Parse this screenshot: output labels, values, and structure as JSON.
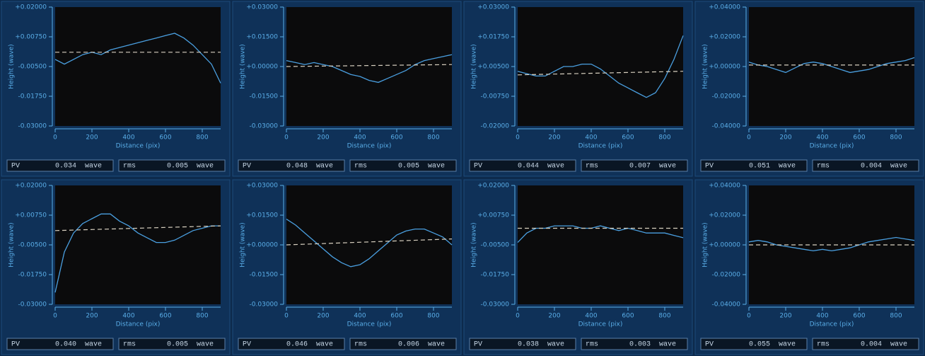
{
  "chart_data": [
    {
      "type": "line",
      "ylabel": "Height (wave)",
      "xlabel": "Distance (pix)",
      "xlim": [
        0,
        900
      ],
      "ylim": [
        -0.03,
        0.02
      ],
      "xticks": [
        0,
        200,
        400,
        600,
        800
      ],
      "yticks": [
        {
          "value": 0.02,
          "label": "+0.02000"
        },
        {
          "value": 0.0075,
          "label": "+0.00750"
        },
        {
          "value": -0.005,
          "label": "-0.00500"
        },
        {
          "value": -0.0175,
          "label": "-0.01750"
        },
        {
          "value": -0.03,
          "label": "-0.03000"
        }
      ],
      "x": [
        0,
        50,
        100,
        150,
        200,
        250,
        300,
        350,
        400,
        450,
        500,
        550,
        600,
        650,
        700,
        750,
        800,
        850,
        900
      ],
      "series": [
        {
          "color": "#4a9fe0",
          "values": [
            -0.002,
            -0.004,
            -0.002,
            0.0,
            0.001,
            0.0,
            0.002,
            0.003,
            0.004,
            0.005,
            0.006,
            0.007,
            0.008,
            0.009,
            0.007,
            0.004,
            0.0,
            -0.004,
            -0.012
          ]
        },
        {
          "color": "#d8d0c0",
          "dash": true,
          "x": [
            0,
            900
          ],
          "values": [
            0.001,
            0.001
          ]
        }
      ],
      "stats": [
        {
          "name": "PV",
          "value": 0.034,
          "unit": "wave"
        },
        {
          "name": "rms",
          "value": 0.005,
          "unit": "wave"
        }
      ]
    },
    {
      "type": "line",
      "ylabel": "Height (wave)",
      "xlabel": "Distance (pix)",
      "xlim": [
        0,
        900
      ],
      "ylim": [
        -0.03,
        0.03
      ],
      "xticks": [
        0,
        200,
        400,
        600,
        800
      ],
      "yticks": [
        {
          "value": 0.03,
          "label": "+0.03000"
        },
        {
          "value": 0.015,
          "label": "+0.01500"
        },
        {
          "value": 0,
          "label": "+0.00000"
        },
        {
          "value": -0.015,
          "label": "-0.01500"
        },
        {
          "value": -0.03,
          "label": "-0.03000"
        }
      ],
      "x": [
        0,
        50,
        100,
        150,
        200,
        250,
        300,
        350,
        400,
        450,
        500,
        550,
        600,
        650,
        700,
        750,
        800,
        850,
        900
      ],
      "series": [
        {
          "color": "#4a9fe0",
          "values": [
            0.003,
            0.002,
            0.001,
            0.002,
            0.001,
            0.0,
            -0.002,
            -0.004,
            -0.005,
            -0.007,
            -0.008,
            -0.006,
            -0.004,
            -0.002,
            0.001,
            0.003,
            0.004,
            0.005,
            0.006
          ]
        },
        {
          "color": "#d8d0c0",
          "dash": true,
          "x": [
            0,
            900
          ],
          "values": [
            0.0,
            0.001
          ]
        }
      ],
      "stats": [
        {
          "name": "PV",
          "value": 0.048,
          "unit": "wave"
        },
        {
          "name": "rms",
          "value": 0.005,
          "unit": "wave"
        }
      ]
    },
    {
      "type": "line",
      "ylabel": "Height (wave)",
      "xlabel": "Distance (pix)",
      "xlim": [
        0,
        900
      ],
      "ylim": [
        -0.02,
        0.03
      ],
      "xticks": [
        0,
        200,
        400,
        600,
        800
      ],
      "yticks": [
        {
          "value": 0.03,
          "label": "+0.03000"
        },
        {
          "value": 0.0175,
          "label": "+0.01750"
        },
        {
          "value": 0.005,
          "label": "+0.00500"
        },
        {
          "value": -0.0075,
          "label": "-0.00750"
        },
        {
          "value": -0.02,
          "label": "-0.02000"
        }
      ],
      "x": [
        0,
        50,
        100,
        150,
        200,
        250,
        300,
        350,
        400,
        450,
        500,
        550,
        600,
        650,
        700,
        750,
        800,
        850,
        900
      ],
      "series": [
        {
          "color": "#4a9fe0",
          "values": [
            0.003,
            0.002,
            0.001,
            0.001,
            0.003,
            0.005,
            0.005,
            0.006,
            0.006,
            0.004,
            0.001,
            -0.002,
            -0.004,
            -0.006,
            -0.008,
            -0.006,
            0.0,
            0.008,
            0.018
          ]
        },
        {
          "color": "#d8d0c0",
          "dash": true,
          "x": [
            0,
            900
          ],
          "values": [
            0.0015,
            0.003
          ]
        }
      ],
      "stats": [
        {
          "name": "PV",
          "value": 0.044,
          "unit": "wave"
        },
        {
          "name": "rms",
          "value": 0.007,
          "unit": "wave"
        }
      ]
    },
    {
      "type": "line",
      "ylabel": "Height (wave)",
      "xlabel": "Distance (pix)",
      "xlim": [
        0,
        900
      ],
      "ylim": [
        -0.04,
        0.04
      ],
      "xticks": [
        0,
        200,
        400,
        600,
        800
      ],
      "yticks": [
        {
          "value": 0.04,
          "label": "+0.04000"
        },
        {
          "value": 0.02,
          "label": "+0.02000"
        },
        {
          "value": 0,
          "label": "+0.00000"
        },
        {
          "value": -0.02,
          "label": "-0.02000"
        },
        {
          "value": -0.04,
          "label": "-0.04000"
        }
      ],
      "x": [
        0,
        50,
        100,
        150,
        200,
        250,
        300,
        350,
        400,
        450,
        500,
        550,
        600,
        650,
        700,
        750,
        800,
        850,
        900
      ],
      "series": [
        {
          "color": "#4a9fe0",
          "values": [
            0.003,
            0.001,
            0.0,
            -0.002,
            -0.004,
            -0.001,
            0.002,
            0.003,
            0.002,
            0.0,
            -0.002,
            -0.004,
            -0.003,
            -0.002,
            0.0,
            0.002,
            0.003,
            0.004,
            0.006
          ]
        },
        {
          "color": "#d8d0c0",
          "dash": true,
          "x": [
            0,
            900
          ],
          "values": [
            0.001,
            0.001
          ]
        }
      ],
      "stats": [
        {
          "name": "PV",
          "value": 0.051,
          "unit": "wave"
        },
        {
          "name": "rms",
          "value": 0.004,
          "unit": "wave"
        }
      ]
    },
    {
      "type": "line",
      "ylabel": "Height (wave)",
      "xlabel": "Distance (pix)",
      "xlim": [
        0,
        900
      ],
      "ylim": [
        -0.03,
        0.02
      ],
      "xticks": [
        0,
        200,
        400,
        600,
        800
      ],
      "yticks": [
        {
          "value": 0.02,
          "label": "+0.02000"
        },
        {
          "value": 0.0075,
          "label": "+0.00750"
        },
        {
          "value": -0.005,
          "label": "-0.00500"
        },
        {
          "value": -0.0175,
          "label": "-0.01750"
        },
        {
          "value": -0.03,
          "label": "-0.03000"
        }
      ],
      "x": [
        0,
        50,
        100,
        150,
        200,
        250,
        300,
        350,
        400,
        450,
        500,
        550,
        600,
        650,
        700,
        750,
        800,
        850,
        900
      ],
      "series": [
        {
          "color": "#4a9fe0",
          "values": [
            -0.025,
            -0.008,
            0.0,
            0.004,
            0.006,
            0.008,
            0.008,
            0.005,
            0.003,
            0.0,
            -0.002,
            -0.004,
            -0.004,
            -0.003,
            -0.001,
            0.001,
            0.002,
            0.003,
            0.003
          ]
        },
        {
          "color": "#d8d0c0",
          "dash": true,
          "x": [
            0,
            900
          ],
          "values": [
            0.001,
            0.003
          ]
        }
      ],
      "stats": [
        {
          "name": "PV",
          "value": {
            "value": 0.04,
            "label": "0.040"
          },
          "unit": "wave"
        },
        {
          "name": "rms",
          "value": 0.005,
          "unit": "wave"
        }
      ]
    },
    {
      "type": "line",
      "ylabel": "Height (wave)",
      "xlabel": "Distance (pix)",
      "xlim": [
        0,
        900
      ],
      "ylim": [
        -0.03,
        0.03
      ],
      "xticks": [
        0,
        200,
        400,
        600,
        800
      ],
      "yticks": [
        {
          "value": 0.03,
          "label": "+0.03000"
        },
        {
          "value": 0.015,
          "label": "+0.01500"
        },
        {
          "value": 0,
          "label": "+0.00000"
        },
        {
          "value": -0.015,
          "label": "-0.01500"
        },
        {
          "value": -0.03,
          "label": "-0.03000"
        }
      ],
      "x": [
        0,
        50,
        100,
        150,
        200,
        250,
        300,
        350,
        400,
        450,
        500,
        550,
        600,
        650,
        700,
        750,
        800,
        850,
        900
      ],
      "series": [
        {
          "color": "#4a9fe0",
          "values": [
            0.013,
            0.01,
            0.006,
            0.002,
            -0.002,
            -0.006,
            -0.009,
            -0.011,
            -0.01,
            -0.007,
            -0.003,
            0.001,
            0.005,
            0.007,
            0.008,
            0.008,
            0.006,
            0.004,
            0.0
          ]
        },
        {
          "color": "#d8d0c0",
          "dash": true,
          "x": [
            0,
            900
          ],
          "values": [
            0.0,
            0.003
          ]
        }
      ],
      "stats": [
        {
          "name": "PV",
          "value": 0.046,
          "unit": "wave"
        },
        {
          "name": "rms",
          "value": 0.006,
          "unit": "wave"
        }
      ]
    },
    {
      "type": "line",
      "ylabel": "Height (wave)",
      "xlabel": "Distance (pix)",
      "xlim": [
        0,
        900
      ],
      "ylim": [
        -0.03,
        0.02
      ],
      "xticks": [
        0,
        200,
        400,
        600,
        800
      ],
      "yticks": [
        {
          "value": 0.02,
          "label": "+0.02000"
        },
        {
          "value": 0.0075,
          "label": "+0.00750"
        },
        {
          "value": -0.005,
          "label": "-0.00500"
        },
        {
          "value": -0.0175,
          "label": "-0.01750"
        },
        {
          "value": -0.03,
          "label": "-0.03000"
        }
      ],
      "x": [
        0,
        50,
        100,
        150,
        200,
        250,
        300,
        350,
        400,
        450,
        500,
        550,
        600,
        650,
        700,
        750,
        800,
        850,
        900
      ],
      "series": [
        {
          "color": "#4a9fe0",
          "values": [
            -0.004,
            0.0,
            0.002,
            0.002,
            0.003,
            0.003,
            0.003,
            0.002,
            0.002,
            0.003,
            0.002,
            0.001,
            0.002,
            0.001,
            0.0,
            0.0,
            0.0,
            -0.001,
            -0.002
          ]
        },
        {
          "color": "#d8d0c0",
          "dash": true,
          "x": [
            0,
            900
          ],
          "values": [
            0.002,
            0.002
          ]
        }
      ],
      "stats": [
        {
          "name": "PV",
          "value": 0.038,
          "unit": "wave"
        },
        {
          "name": "rms",
          "value": 0.003,
          "unit": "wave"
        }
      ]
    },
    {
      "type": "line",
      "ylabel": "Height (wave)",
      "xlabel": "Distance (pix)",
      "xlim": [
        0,
        900
      ],
      "ylim": [
        -0.04,
        0.04
      ],
      "xticks": [
        0,
        200,
        400,
        600,
        800
      ],
      "yticks": [
        {
          "value": 0.04,
          "label": "+0.04000"
        },
        {
          "value": 0.02,
          "label": "+0.02000"
        },
        {
          "value": 0,
          "label": "+0.00000"
        },
        {
          "value": -0.02,
          "label": "-0.02000"
        },
        {
          "value": -0.04,
          "label": "-0.04000"
        }
      ],
      "x": [
        0,
        50,
        100,
        150,
        200,
        250,
        300,
        350,
        400,
        450,
        500,
        550,
        600,
        650,
        700,
        750,
        800,
        850,
        900
      ],
      "series": [
        {
          "color": "#4a9fe0",
          "values": [
            0.002,
            0.003,
            0.002,
            0.0,
            -0.001,
            -0.002,
            -0.003,
            -0.004,
            -0.003,
            -0.004,
            -0.003,
            -0.002,
            0.0,
            0.002,
            0.003,
            0.004,
            0.005,
            0.004,
            0.003
          ]
        },
        {
          "color": "#d8d0c0",
          "dash": true,
          "x": [
            0,
            900
          ],
          "values": [
            0.0,
            0.0
          ]
        }
      ],
      "stats": [
        {
          "name": "PV",
          "value": 0.055,
          "unit": "wave"
        },
        {
          "name": "rms",
          "value": 0.004,
          "unit": "wave"
        }
      ]
    }
  ]
}
